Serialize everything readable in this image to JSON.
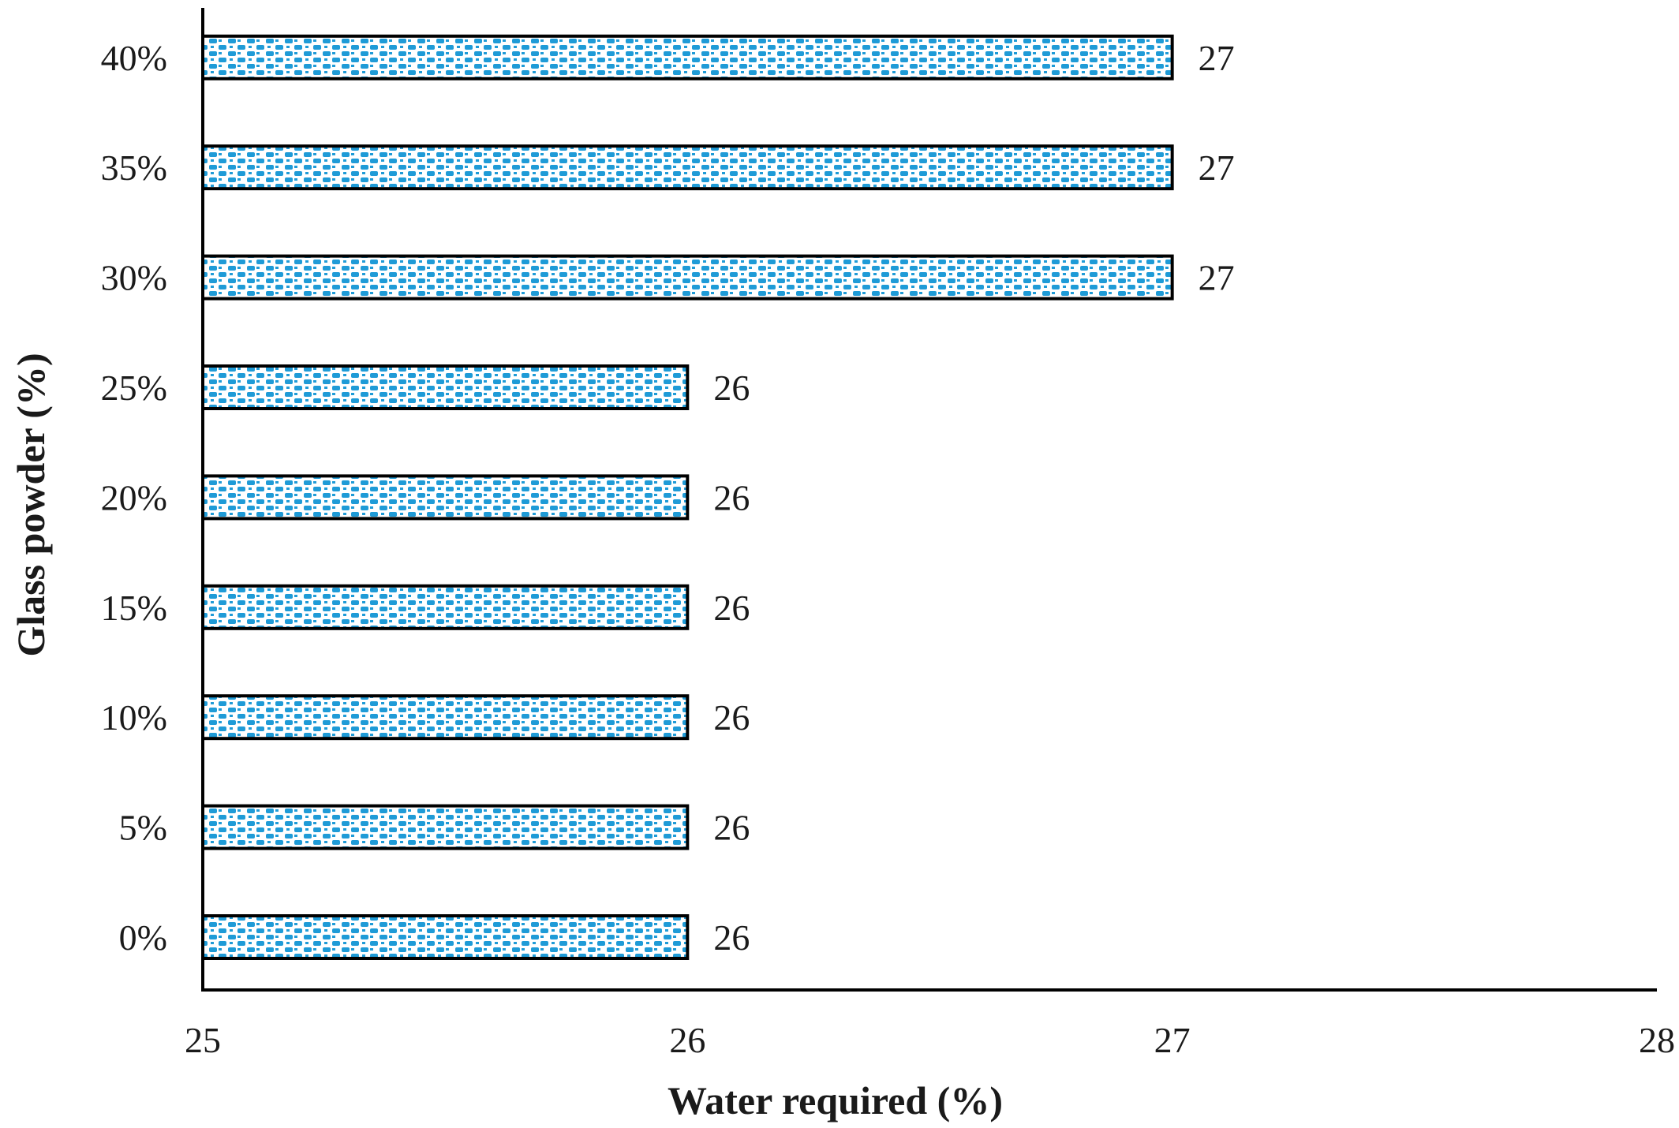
{
  "chart_data": {
    "type": "bar",
    "orientation": "horizontal",
    "categories": [
      "0%",
      "5%",
      "10%",
      "15%",
      "20%",
      "25%",
      "30%",
      "35%",
      "40%"
    ],
    "values": [
      26,
      26,
      26,
      26,
      26,
      26,
      27,
      27,
      27
    ],
    "data_labels": [
      "26",
      "26",
      "26",
      "26",
      "26",
      "26",
      "27",
      "27",
      "27"
    ],
    "xlabel": "Water required (%)",
    "ylabel": "Glass powder (%)",
    "xlim": [
      25,
      28
    ],
    "xticks": [
      25,
      26,
      27,
      28
    ],
    "xtick_labels": [
      "25",
      "26",
      "27",
      "28"
    ],
    "grid": false,
    "legend": "none",
    "bar_fill": "checkered pattern",
    "colors": {
      "bar_pattern": "#1f9bd7",
      "bar_background": "#ffffff",
      "bar_outline": "#000000",
      "axis": "#000000",
      "text": "#1a1a1a"
    }
  }
}
